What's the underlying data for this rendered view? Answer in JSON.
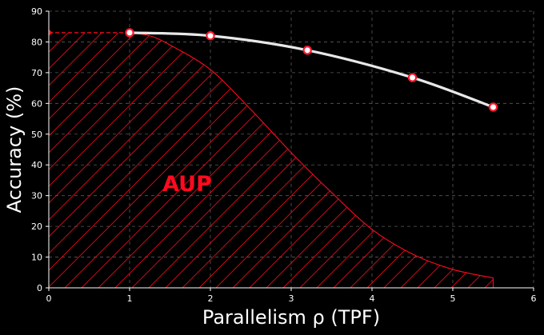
{
  "chart_data": {
    "type": "line",
    "title": "",
    "xlabel": "Parallelism ρ (TPF)",
    "ylabel": "Accuracy (%)",
    "xlim": [
      0,
      6
    ],
    "ylim": [
      0,
      90
    ],
    "xticks": [
      0,
      1,
      2,
      3,
      4,
      5,
      6
    ],
    "yticks": [
      0,
      10,
      20,
      30,
      40,
      50,
      60,
      70,
      80,
      90
    ],
    "grid": true,
    "series": [
      {
        "color": "#e8e8e8",
        "marker_color": "#ff1a2e",
        "x": [
          1.0,
          2.0,
          3.2,
          4.5,
          5.5
        ],
        "y": [
          83.0,
          82.0,
          77.3,
          68.4,
          58.8
        ]
      }
    ],
    "area": {
      "label": "AUP",
      "color": "#ff0a1e",
      "x": [
        0,
        1.0,
        1.25,
        1.5,
        2.0,
        2.5,
        3.0,
        3.5,
        4.0,
        4.5,
        5.0,
        5.5
      ],
      "y": [
        83.0,
        83.0,
        82.0,
        79.0,
        71.0,
        58.0,
        44.0,
        31.0,
        19.0,
        11.0,
        6.0,
        3.2
      ]
    }
  }
}
